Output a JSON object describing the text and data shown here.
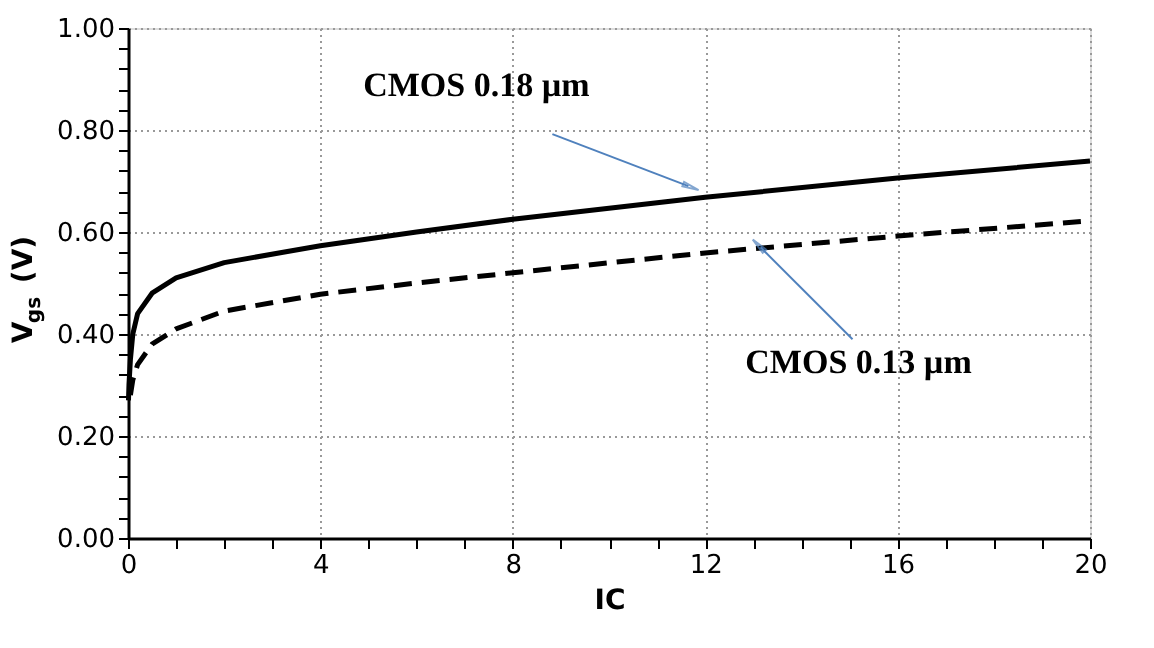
{
  "chart_data": {
    "type": "line",
    "xlabel": "IC",
    "ylabel": "V$_{gs}$ (V)",
    "xlim": [
      0,
      20
    ],
    "ylim": [
      0,
      1
    ],
    "xticks": [
      0,
      {
        "value": 1,
        "label": null
      },
      {
        "value": 2,
        "label": null
      },
      {
        "value": 3,
        "label": null
      },
      4,
      {
        "value": 5,
        "label": null
      },
      {
        "value": 6,
        "label": null
      },
      {
        "value": 7,
        "label": null
      },
      8,
      {
        "value": 9,
        "label": null
      },
      {
        "value": 10,
        "label": null
      },
      {
        "value": 11,
        "label": null
      },
      12,
      {
        "value": 13,
        "label": null
      },
      {
        "value": 14,
        "label": null
      },
      {
        "value": 15,
        "label": null
      },
      16,
      {
        "value": 17,
        "label": null
      },
      {
        "value": 18,
        "label": null
      },
      {
        "value": 19,
        "label": null
      },
      20
    ],
    "yticks": [
      {
        "value": 0,
        "label": "0.00"
      },
      {
        "value": 0.04,
        "label": null
      },
      {
        "value": 0.08,
        "label": null
      },
      {
        "value": 0.12,
        "label": null
      },
      {
        "value": 0.16,
        "label": null
      },
      {
        "value": 0.2,
        "label": "0.20"
      },
      {
        "value": 0.24,
        "label": null
      },
      {
        "value": 0.28,
        "label": null
      },
      {
        "value": 0.32,
        "label": null
      },
      {
        "value": 0.36,
        "label": null
      },
      {
        "value": 0.4,
        "label": "0.40"
      },
      {
        "value": 0.44,
        "label": null
      },
      {
        "value": 0.48,
        "label": null
      },
      {
        "value": 0.52,
        "label": null
      },
      {
        "value": 0.56,
        "label": null
      },
      {
        "value": 0.6,
        "label": "0.60"
      },
      {
        "value": 0.64,
        "label": null
      },
      {
        "value": 0.68,
        "label": null
      },
      {
        "value": 0.72,
        "label": null
      },
      {
        "value": 0.76,
        "label": null
      },
      {
        "value": 0.8,
        "label": "0.80"
      },
      {
        "value": 0.84,
        "label": null
      },
      {
        "value": 0.88,
        "label": null
      },
      {
        "value": 0.92,
        "label": null
      },
      {
        "value": 0.96,
        "label": null
      },
      {
        "value": 1,
        "label": "1.00"
      }
    ],
    "grid": true,
    "marker": "none",
    "series": [
      {
        "color": "#000000",
        "line_style": "solid",
        "x": [
          0.01,
          0.02,
          0.05,
          0.1,
          0.2,
          0.5,
          1,
          2,
          4,
          6,
          8,
          12,
          16,
          20
        ],
        "values": [
          0.27,
          0.3,
          0.35,
          0.4,
          0.44,
          0.48,
          0.51,
          0.54,
          0.573,
          0.6,
          0.625,
          0.668,
          0.706,
          0.739
        ]
      },
      {
        "color": "#000000",
        "line_style": "dashed",
        "x": [
          0.05,
          0.1,
          0.2,
          0.5,
          1,
          2,
          4,
          6,
          8,
          12,
          16,
          20
        ],
        "values": [
          0.28,
          0.31,
          0.34,
          0.38,
          0.41,
          0.445,
          0.478,
          0.5,
          0.52,
          0.559,
          0.592,
          0.622
        ]
      }
    ],
    "annotations": [
      {
        "text": "CMOS 0.18 µm",
        "x": 11.65,
        "y": 0.69
      },
      {
        "text": "CMOS 0.13 µm",
        "x": 13.15,
        "y": 0.57
      }
    ]
  }
}
